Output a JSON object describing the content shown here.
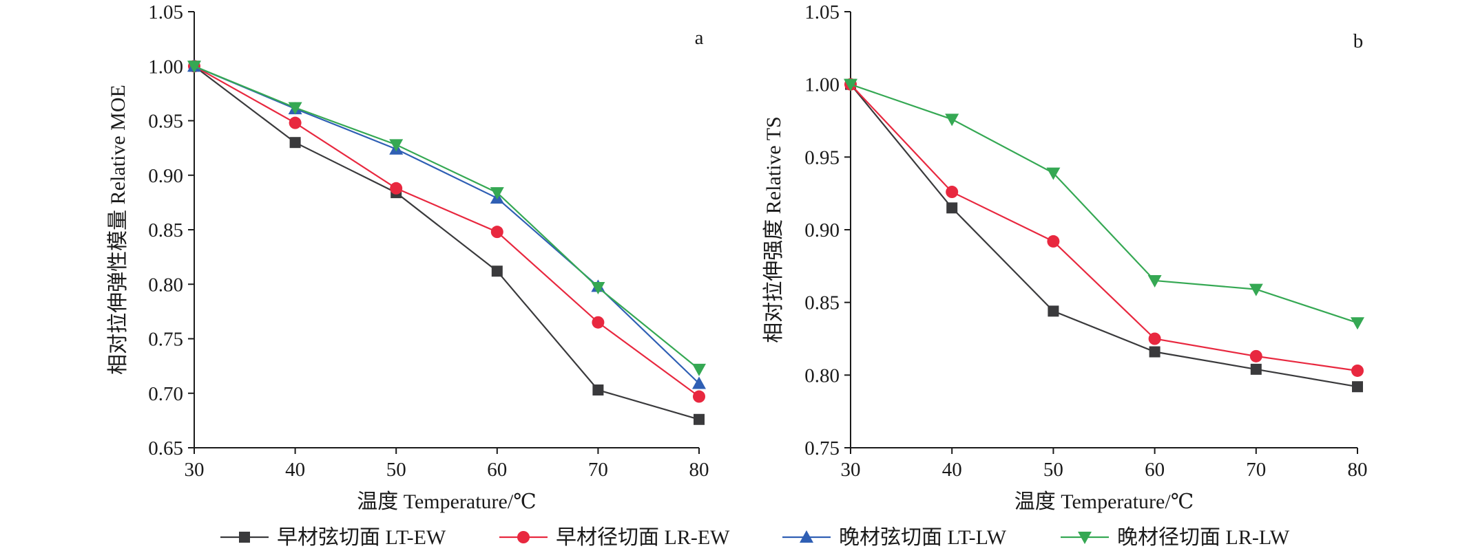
{
  "chart_data": [
    {
      "type": "line",
      "panel_label": "a",
      "xlabel": "温度 Temperature/℃",
      "ylabel": "相对拉伸弹性模量 Relative MOE",
      "x": [
        30,
        40,
        50,
        60,
        70,
        80
      ],
      "xlim": [
        30,
        80
      ],
      "ylim": [
        0.65,
        1.05
      ],
      "yticks": [
        0.65,
        0.7,
        0.75,
        0.8,
        0.85,
        0.9,
        0.95,
        1.0,
        1.05
      ],
      "ytick_labels": [
        "0.65",
        "0.70",
        "0.75",
        "0.80",
        "0.85",
        "0.90",
        "0.95",
        "1.00",
        "1.05"
      ],
      "xtick_labels": [
        "30",
        "40",
        "50",
        "60",
        "70",
        "80"
      ],
      "grid": false,
      "series": [
        {
          "name": "早材弦切面 LT-EW",
          "values": [
            1.0,
            0.93,
            0.884,
            0.812,
            0.703,
            0.676
          ]
        },
        {
          "name": "早材径切面 LR-EW",
          "values": [
            1.0,
            0.948,
            0.888,
            0.848,
            0.765,
            0.697
          ]
        },
        {
          "name": "晚材弦切面 LT-LW",
          "values": [
            1.0,
            0.961,
            0.924,
            0.879,
            0.798,
            0.709
          ]
        },
        {
          "name": "晚材径切面 LR-LW",
          "values": [
            1.0,
            0.962,
            0.928,
            0.884,
            0.797,
            0.722
          ]
        }
      ]
    },
    {
      "type": "line",
      "panel_label": "b",
      "xlabel": "温度 Temperature/℃",
      "ylabel": "相对拉伸强度 Relative TS",
      "x": [
        30,
        40,
        50,
        60,
        70,
        80
      ],
      "xlim": [
        30,
        80
      ],
      "ylim": [
        0.75,
        1.05
      ],
      "yticks": [
        0.75,
        0.8,
        0.85,
        0.9,
        0.95,
        1.0,
        1.05
      ],
      "ytick_labels": [
        "0.75",
        "0.80",
        "0.85",
        "0.90",
        "0.95",
        "1.00",
        "1.05"
      ],
      "xtick_labels": [
        "30",
        "40",
        "50",
        "60",
        "70",
        "80"
      ],
      "grid": false,
      "series": [
        {
          "name": "早材弦切面 LT-EW",
          "values": [
            1.0,
            0.915,
            0.844,
            0.816,
            0.804,
            0.792
          ]
        },
        {
          "name": "早材径切面 LR-EW",
          "values": [
            1.0,
            0.926,
            0.892,
            0.825,
            0.813,
            0.803
          ]
        },
        {
          "name": "晚材径切面 LR-LW",
          "values": [
            1.0,
            0.976,
            0.939,
            0.865,
            0.859,
            0.836
          ]
        }
      ]
    }
  ],
  "legend": {
    "placement": "bottom",
    "entries": [
      {
        "name": "早材弦切面 LT-EW",
        "color": "#3a3a3c",
        "marker": "square"
      },
      {
        "name": "早材径切面 LR-EW",
        "color": "#e8283f",
        "marker": "circle"
      },
      {
        "name": "晚材弦切面 LT-LW",
        "color": "#2f5fb4",
        "marker": "triangle-up"
      },
      {
        "name": "晚材径切面 LR-LW",
        "color": "#35a853",
        "marker": "triangle-down"
      }
    ]
  }
}
